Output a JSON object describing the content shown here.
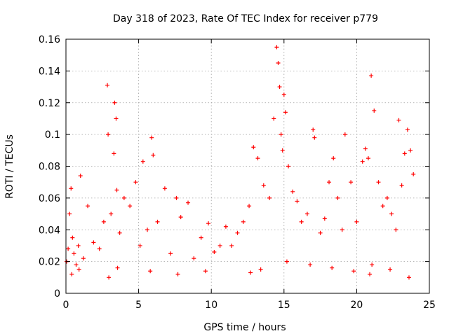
{
  "chart_data": {
    "type": "scatter",
    "title": "Day 318 of 2023, Rate Of TEC Index for receiver p779",
    "xlabel": "GPS time / hours",
    "ylabel": "ROTI / TECUs",
    "xlim": [
      0,
      25
    ],
    "ylim": [
      0,
      0.16
    ],
    "xticks": [
      0,
      5,
      10,
      15,
      20,
      25
    ],
    "xtick_labels": [
      "0",
      "5",
      "10",
      "15",
      "20",
      "25"
    ],
    "yticks": [
      0,
      0.02,
      0.04,
      0.06,
      0.08,
      0.1,
      0.12,
      0.14,
      0.16
    ],
    "ytick_labels": [
      "0",
      "0.02",
      "0.04",
      "0.06",
      "0.08",
      "0.1",
      "0.12",
      "0.14",
      "0.16"
    ],
    "grid": true,
    "marker": "plus",
    "color": "#ff0000",
    "series": [
      {
        "x": [
          0.05,
          0.15,
          0.25,
          0.35,
          0.45,
          0.55,
          0.7,
          0.85,
          1.0,
          1.2,
          1.5,
          1.9,
          2.3,
          2.6,
          2.85,
          2.9,
          3.1,
          3.3,
          3.35,
          3.45,
          3.5,
          3.7,
          4.0,
          4.4,
          4.8,
          5.1,
          5.3,
          5.6,
          5.9,
          6.0,
          6.3,
          6.8,
          7.2,
          7.6,
          7.9,
          8.4,
          8.8,
          9.3,
          9.8,
          10.2,
          10.6,
          11.0,
          11.4,
          11.8,
          12.2,
          12.6,
          12.9,
          13.2,
          13.6,
          14.0,
          14.3,
          14.5,
          14.6,
          14.7,
          14.8,
          14.9,
          15.0,
          15.1,
          15.3,
          15.6,
          15.9,
          16.2,
          16.6,
          17.0,
          17.1,
          17.5,
          17.8,
          18.1,
          18.4,
          18.7,
          19.0,
          19.2,
          19.6,
          20.0,
          20.4,
          20.6,
          20.8,
          21.0,
          21.2,
          21.5,
          21.8,
          22.1,
          22.4,
          22.7,
          22.9,
          23.1,
          23.3,
          23.5,
          23.7,
          23.9,
          0.4,
          0.9,
          2.95,
          3.55,
          5.8,
          7.7,
          9.6,
          12.7,
          13.4,
          15.2,
          16.8,
          18.3,
          19.8,
          20.9,
          21.05,
          22.3,
          23.6
        ],
        "y": [
          0.02,
          0.028,
          0.05,
          0.066,
          0.035,
          0.025,
          0.018,
          0.03,
          0.074,
          0.022,
          0.055,
          0.032,
          0.028,
          0.045,
          0.131,
          0.1,
          0.05,
          0.088,
          0.12,
          0.11,
          0.065,
          0.038,
          0.06,
          0.055,
          0.07,
          0.03,
          0.083,
          0.04,
          0.098,
          0.087,
          0.045,
          0.066,
          0.025,
          0.06,
          0.048,
          0.057,
          0.022,
          0.035,
          0.044,
          0.026,
          0.03,
          0.042,
          0.03,
          0.038,
          0.045,
          0.055,
          0.092,
          0.085,
          0.068,
          0.06,
          0.11,
          0.155,
          0.145,
          0.13,
          0.1,
          0.09,
          0.125,
          0.114,
          0.08,
          0.064,
          0.058,
          0.045,
          0.05,
          0.103,
          0.098,
          0.038,
          0.047,
          0.07,
          0.085,
          0.06,
          0.04,
          0.1,
          0.07,
          0.045,
          0.083,
          0.091,
          0.085,
          0.137,
          0.115,
          0.07,
          0.055,
          0.06,
          0.05,
          0.04,
          0.109,
          0.068,
          0.088,
          0.103,
          0.09,
          0.075,
          0.012,
          0.015,
          0.01,
          0.016,
          0.014,
          0.012,
          0.014,
          0.013,
          0.015,
          0.02,
          0.018,
          0.016,
          0.014,
          0.012,
          0.018,
          0.015,
          0.01
        ]
      }
    ]
  }
}
